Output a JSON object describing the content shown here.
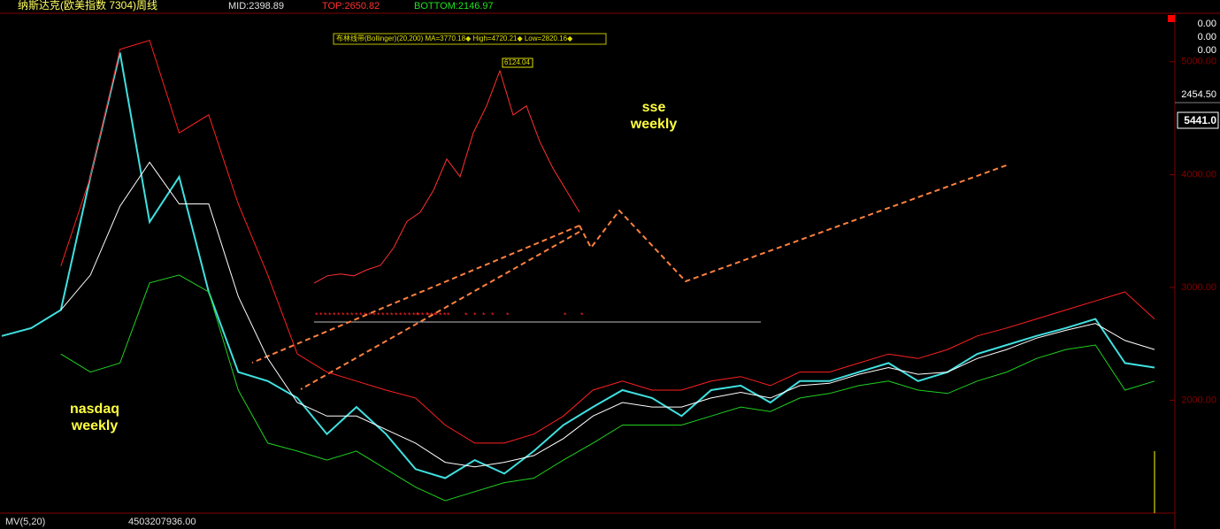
{
  "header": {
    "title": "纳斯达克(欧美指数 7304)周线",
    "mid": "MID:2398.89",
    "top": "TOP:2650.82",
    "bottom": "BOTTOM:2146.97"
  },
  "right_panel": {
    "labels": [
      "0.00",
      "0.00",
      "0.00",
      "2454.50"
    ],
    "price_box": "5441.0"
  },
  "footer": {
    "indicator": "MV(5,20)",
    "volume": "4503207936.00"
  },
  "chart_data": [
    {
      "type": "line",
      "title": "nasdaq weekly",
      "annotation_lines": [
        "nasdaq",
        "weekly"
      ],
      "ylim": [
        1000,
        5430
      ],
      "yticks": [
        {
          "value": 2000,
          "label": "2000.00"
        },
        {
          "value": 3000,
          "label": "3000.00"
        },
        {
          "value": 4000,
          "label": "4000.00"
        },
        {
          "value": 5000,
          "label": "5000.00"
        }
      ],
      "series": [
        {
          "name": "close",
          "color": "#40e0e0",
          "values": [
            2570,
            2640,
            2800,
            3980,
            5080,
            3580,
            3980,
            2960,
            2250,
            2170,
            2020,
            1700,
            1940,
            1700,
            1390,
            1310,
            1470,
            1350,
            1550,
            1780,
            1940,
            2090,
            2020,
            1860,
            2090,
            2130,
            1980,
            2170,
            2170,
            2250,
            2330,
            2170,
            2250,
            2410,
            2490,
            2570,
            2640,
            2720,
            2330,
            2290
          ]
        },
        {
          "name": "upper",
          "color": "#ff2020",
          "values": [
            null,
            null,
            3190,
            3980,
            5110,
            5190,
            4370,
            4530,
            3740,
            3110,
            2410,
            2250,
            2170,
            2090,
            2020,
            1780,
            1620,
            1620,
            1700,
            1860,
            2090,
            2170,
            2090,
            2090,
            2170,
            2210,
            2130,
            2250,
            2250,
            2330,
            2410,
            2370,
            2450,
            2570,
            2640,
            2720,
            2800,
            2880,
            2960,
            2720
          ]
        },
        {
          "name": "middle",
          "color": "#ffffff",
          "values": [
            null,
            null,
            2800,
            3110,
            3720,
            4110,
            3740,
            3740,
            2920,
            2370,
            1980,
            1860,
            1860,
            1740,
            1620,
            1450,
            1410,
            1450,
            1510,
            1660,
            1860,
            1980,
            1940,
            1940,
            2020,
            2070,
            2020,
            2130,
            2150,
            2230,
            2290,
            2230,
            2250,
            2370,
            2450,
            2550,
            2620,
            2680,
            2530,
            2450
          ]
        },
        {
          "name": "lower",
          "color": "#20d020",
          "values": [
            null,
            null,
            2410,
            2250,
            2330,
            3040,
            3110,
            2960,
            2090,
            1620,
            1550,
            1470,
            1550,
            1390,
            1230,
            1110,
            1190,
            1270,
            1310,
            1470,
            1620,
            1780,
            1780,
            1780,
            1860,
            1940,
            1900,
            2020,
            2060,
            2130,
            2170,
            2090,
            2060,
            2170,
            2250,
            2370,
            2450,
            2490,
            2090,
            2170
          ]
        }
      ]
    },
    {
      "type": "line",
      "title": "sse weekly",
      "annotation_lines": [
        "sse",
        "weekly"
      ],
      "legend": "布林线带(Bollinger)(20,200) MA=3770.18◆ High=4720.21◆ Low=2820.16◆",
      "annotation": "6124.04",
      "ylim": [
        2000,
        6124.04
      ],
      "series": [
        {
          "name": "sse",
          "color": "#ff3030",
          "values": [
            2650,
            2770,
            2800,
            2770,
            2870,
            2940,
            3230,
            3660,
            3810,
            4170,
            4680,
            4390,
            5110,
            5550,
            6124.04,
            5400,
            5550,
            4970,
            4530,
            4170,
            3810
          ]
        }
      ]
    }
  ]
}
